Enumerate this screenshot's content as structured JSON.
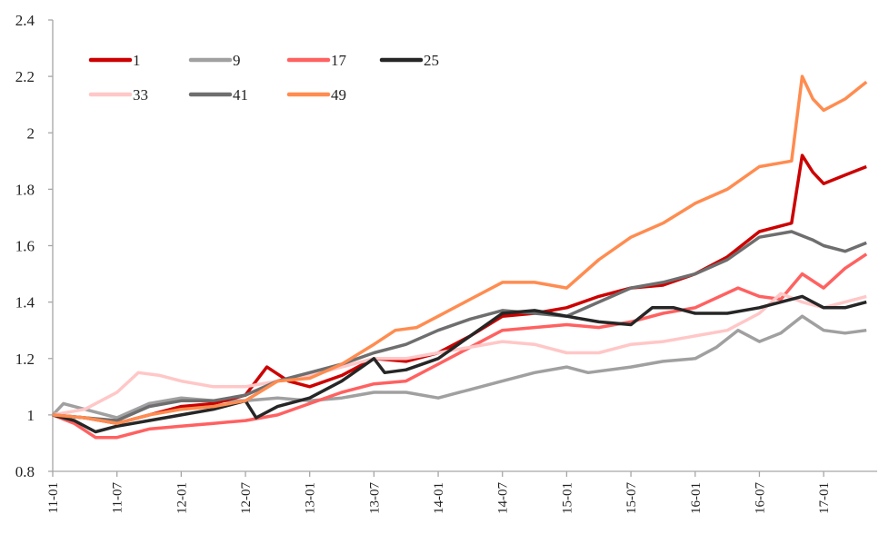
{
  "chart_data": {
    "type": "line",
    "title": "",
    "xlabel": "",
    "ylabel": "",
    "ylim": [
      0.8,
      2.4
    ],
    "yticks": [
      "0.8",
      "1",
      "1.2",
      "1.4",
      "1.6",
      "1.8",
      "2",
      "2.2",
      "2.4"
    ],
    "xticks": [
      "11-01",
      "11-07",
      "12-01",
      "12-07",
      "13-01",
      "13-07",
      "14-01",
      "14-07",
      "15-01",
      "15-07",
      "16-01",
      "16-07",
      "17-01"
    ],
    "xrange": [
      "11-01",
      "17-06"
    ],
    "grid": false,
    "legend_position": "top-left",
    "series": [
      {
        "name": "1",
        "color": "#cc0000",
        "points": [
          [
            "11-01",
            1.0
          ],
          [
            "11-04",
            0.99
          ],
          [
            "11-07",
            0.97
          ],
          [
            "11-10",
            1.0
          ],
          [
            "12-01",
            1.03
          ],
          [
            "12-04",
            1.04
          ],
          [
            "12-07",
            1.07
          ],
          [
            "12-09",
            1.17
          ],
          [
            "12-11",
            1.12
          ],
          [
            "13-01",
            1.1
          ],
          [
            "13-04",
            1.14
          ],
          [
            "13-07",
            1.2
          ],
          [
            "13-10",
            1.19
          ],
          [
            "14-01",
            1.22
          ],
          [
            "14-04",
            1.28
          ],
          [
            "14-07",
            1.35
          ],
          [
            "14-10",
            1.36
          ],
          [
            "15-01",
            1.38
          ],
          [
            "15-04",
            1.42
          ],
          [
            "15-07",
            1.45
          ],
          [
            "15-10",
            1.46
          ],
          [
            "16-01",
            1.5
          ],
          [
            "16-04",
            1.56
          ],
          [
            "16-07",
            1.65
          ],
          [
            "16-10",
            1.68
          ],
          [
            "16-11",
            1.92
          ],
          [
            "16-12",
            1.86
          ],
          [
            "17-01",
            1.82
          ],
          [
            "17-03",
            1.85
          ],
          [
            "17-05",
            1.88
          ]
        ]
      },
      {
        "name": "9",
        "color": "#a0a0a0",
        "points": [
          [
            "11-01",
            1.0
          ],
          [
            "11-02",
            1.04
          ],
          [
            "11-04",
            1.02
          ],
          [
            "11-07",
            0.99
          ],
          [
            "11-10",
            1.04
          ],
          [
            "12-01",
            1.06
          ],
          [
            "12-04",
            1.05
          ],
          [
            "12-07",
            1.05
          ],
          [
            "12-10",
            1.06
          ],
          [
            "13-01",
            1.05
          ],
          [
            "13-04",
            1.06
          ],
          [
            "13-07",
            1.08
          ],
          [
            "13-10",
            1.08
          ],
          [
            "14-01",
            1.06
          ],
          [
            "14-04",
            1.09
          ],
          [
            "14-07",
            1.12
          ],
          [
            "14-10",
            1.15
          ],
          [
            "15-01",
            1.17
          ],
          [
            "15-03",
            1.15
          ],
          [
            "15-07",
            1.17
          ],
          [
            "15-10",
            1.19
          ],
          [
            "16-01",
            1.2
          ],
          [
            "16-03",
            1.24
          ],
          [
            "16-05",
            1.3
          ],
          [
            "16-07",
            1.26
          ],
          [
            "16-09",
            1.29
          ],
          [
            "16-11",
            1.35
          ],
          [
            "17-01",
            1.3
          ],
          [
            "17-03",
            1.29
          ],
          [
            "17-05",
            1.3
          ]
        ]
      },
      {
        "name": "17",
        "color": "#ff6161",
        "points": [
          [
            "11-01",
            1.0
          ],
          [
            "11-03",
            0.97
          ],
          [
            "11-05",
            0.92
          ],
          [
            "11-07",
            0.92
          ],
          [
            "11-10",
            0.95
          ],
          [
            "12-01",
            0.96
          ],
          [
            "12-04",
            0.97
          ],
          [
            "12-07",
            0.98
          ],
          [
            "12-10",
            1.0
          ],
          [
            "13-01",
            1.04
          ],
          [
            "13-04",
            1.08
          ],
          [
            "13-07",
            1.11
          ],
          [
            "13-10",
            1.12
          ],
          [
            "14-01",
            1.18
          ],
          [
            "14-04",
            1.24
          ],
          [
            "14-07",
            1.3
          ],
          [
            "14-10",
            1.31
          ],
          [
            "15-01",
            1.32
          ],
          [
            "15-04",
            1.31
          ],
          [
            "15-07",
            1.33
          ],
          [
            "15-10",
            1.36
          ],
          [
            "16-01",
            1.38
          ],
          [
            "16-05",
            1.45
          ],
          [
            "16-07",
            1.42
          ],
          [
            "16-09",
            1.41
          ],
          [
            "16-11",
            1.5
          ],
          [
            "17-01",
            1.45
          ],
          [
            "17-03",
            1.52
          ],
          [
            "17-05",
            1.57
          ]
        ]
      },
      {
        "name": "25",
        "color": "#262626",
        "points": [
          [
            "11-01",
            1.0
          ],
          [
            "11-03",
            0.98
          ],
          [
            "11-05",
            0.94
          ],
          [
            "11-07",
            0.96
          ],
          [
            "11-10",
            0.98
          ],
          [
            "12-01",
            1.0
          ],
          [
            "12-04",
            1.02
          ],
          [
            "12-07",
            1.05
          ],
          [
            "12-08",
            0.99
          ],
          [
            "12-10",
            1.03
          ],
          [
            "13-01",
            1.06
          ],
          [
            "13-04",
            1.12
          ],
          [
            "13-07",
            1.2
          ],
          [
            "13-08",
            1.15
          ],
          [
            "13-10",
            1.16
          ],
          [
            "14-01",
            1.2
          ],
          [
            "14-04",
            1.28
          ],
          [
            "14-07",
            1.36
          ],
          [
            "14-10",
            1.37
          ],
          [
            "15-01",
            1.35
          ],
          [
            "15-04",
            1.33
          ],
          [
            "15-07",
            1.32
          ],
          [
            "15-09",
            1.38
          ],
          [
            "15-11",
            1.38
          ],
          [
            "16-01",
            1.36
          ],
          [
            "16-04",
            1.36
          ],
          [
            "16-07",
            1.38
          ],
          [
            "16-11",
            1.42
          ],
          [
            "17-01",
            1.38
          ],
          [
            "17-03",
            1.38
          ],
          [
            "17-05",
            1.4
          ]
        ]
      },
      {
        "name": "33",
        "color": "#ffc7c7",
        "points": [
          [
            "11-01",
            1.0
          ],
          [
            "11-04",
            1.02
          ],
          [
            "11-07",
            1.08
          ],
          [
            "11-09",
            1.15
          ],
          [
            "11-11",
            1.14
          ],
          [
            "12-01",
            1.12
          ],
          [
            "12-04",
            1.1
          ],
          [
            "12-07",
            1.1
          ],
          [
            "12-10",
            1.12
          ],
          [
            "13-01",
            1.14
          ],
          [
            "13-04",
            1.17
          ],
          [
            "13-07",
            1.2
          ],
          [
            "13-10",
            1.2
          ],
          [
            "14-01",
            1.22
          ],
          [
            "14-04",
            1.24
          ],
          [
            "14-07",
            1.26
          ],
          [
            "14-10",
            1.25
          ],
          [
            "15-01",
            1.22
          ],
          [
            "15-04",
            1.22
          ],
          [
            "15-07",
            1.25
          ],
          [
            "15-10",
            1.26
          ],
          [
            "16-01",
            1.28
          ],
          [
            "16-04",
            1.3
          ],
          [
            "16-07",
            1.36
          ],
          [
            "16-09",
            1.43
          ],
          [
            "16-11",
            1.4
          ],
          [
            "17-01",
            1.38
          ],
          [
            "17-03",
            1.4
          ],
          [
            "17-05",
            1.42
          ]
        ]
      },
      {
        "name": "41",
        "color": "#6e6e6e",
        "points": [
          [
            "11-01",
            1.0
          ],
          [
            "11-04",
            0.99
          ],
          [
            "11-07",
            0.98
          ],
          [
            "11-10",
            1.03
          ],
          [
            "12-01",
            1.05
          ],
          [
            "12-04",
            1.05
          ],
          [
            "12-07",
            1.07
          ],
          [
            "12-10",
            1.12
          ],
          [
            "13-01",
            1.15
          ],
          [
            "13-04",
            1.18
          ],
          [
            "13-07",
            1.22
          ],
          [
            "13-10",
            1.25
          ],
          [
            "14-01",
            1.3
          ],
          [
            "14-04",
            1.34
          ],
          [
            "14-07",
            1.37
          ],
          [
            "14-10",
            1.36
          ],
          [
            "15-01",
            1.35
          ],
          [
            "15-04",
            1.4
          ],
          [
            "15-07",
            1.45
          ],
          [
            "15-10",
            1.47
          ],
          [
            "16-01",
            1.5
          ],
          [
            "16-04",
            1.55
          ],
          [
            "16-07",
            1.63
          ],
          [
            "16-10",
            1.65
          ],
          [
            "16-12",
            1.62
          ],
          [
            "17-01",
            1.6
          ],
          [
            "17-03",
            1.58
          ],
          [
            "17-05",
            1.61
          ]
        ]
      },
      {
        "name": "49",
        "color": "#ff8c50",
        "points": [
          [
            "11-01",
            1.0
          ],
          [
            "11-04",
            0.99
          ],
          [
            "11-07",
            0.97
          ],
          [
            "11-10",
            1.0
          ],
          [
            "12-01",
            1.02
          ],
          [
            "12-04",
            1.03
          ],
          [
            "12-07",
            1.05
          ],
          [
            "12-10",
            1.12
          ],
          [
            "13-01",
            1.13
          ],
          [
            "13-04",
            1.18
          ],
          [
            "13-07",
            1.25
          ],
          [
            "13-09",
            1.3
          ],
          [
            "13-11",
            1.31
          ],
          [
            "14-01",
            1.35
          ],
          [
            "14-04",
            1.41
          ],
          [
            "14-07",
            1.47
          ],
          [
            "14-10",
            1.47
          ],
          [
            "15-01",
            1.45
          ],
          [
            "15-04",
            1.55
          ],
          [
            "15-07",
            1.63
          ],
          [
            "15-10",
            1.68
          ],
          [
            "16-01",
            1.75
          ],
          [
            "16-04",
            1.8
          ],
          [
            "16-07",
            1.88
          ],
          [
            "16-10",
            1.9
          ],
          [
            "16-11",
            2.2
          ],
          [
            "16-12",
            2.12
          ],
          [
            "17-01",
            2.08
          ],
          [
            "17-03",
            2.12
          ],
          [
            "17-05",
            2.18
          ]
        ]
      }
    ]
  }
}
